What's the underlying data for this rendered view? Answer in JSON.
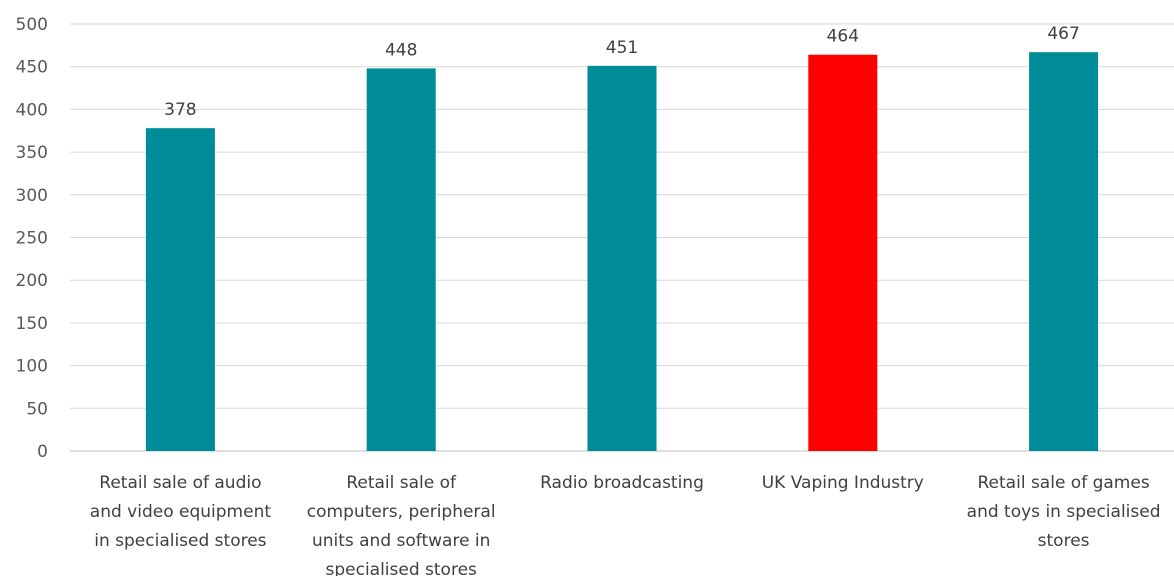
{
  "chart_data": {
    "type": "bar",
    "title": "",
    "xlabel": "",
    "ylabel": "",
    "ylim": [
      0,
      500
    ],
    "y_ticks": [
      0,
      50,
      100,
      150,
      200,
      250,
      300,
      350,
      400,
      450,
      500
    ],
    "grid": true,
    "legend": "none",
    "categories": [
      "Retail sale of audio and video equipment in specialised stores",
      "Retail sale of computers, peripheral units and software in specialised stores",
      "Radio broadcasting",
      "UK Vaping Industry",
      "Retail sale of games and toys in specialised stores"
    ],
    "category_lines": [
      [
        "Retail sale of audio",
        "and video equipment",
        "in specialised stores"
      ],
      [
        "Retail sale of",
        "computers, peripheral",
        "units and software in",
        "specialised stores"
      ],
      [
        "Radio broadcasting"
      ],
      [
        "UK Vaping Industry"
      ],
      [
        "Retail sale of games",
        "and toys in specialised",
        "stores"
      ]
    ],
    "values": [
      378,
      448,
      451,
      464,
      467
    ],
    "data_labels": [
      "378",
      "448",
      "451",
      "464",
      "467"
    ],
    "colors": [
      "#008B99",
      "#008B99",
      "#008B99",
      "#FF0000",
      "#008B99"
    ],
    "highlight_category": "UK Vaping Industry"
  },
  "style": {
    "grid_color": "#D9D9D9",
    "axis_color": "#BFBFBF"
  }
}
